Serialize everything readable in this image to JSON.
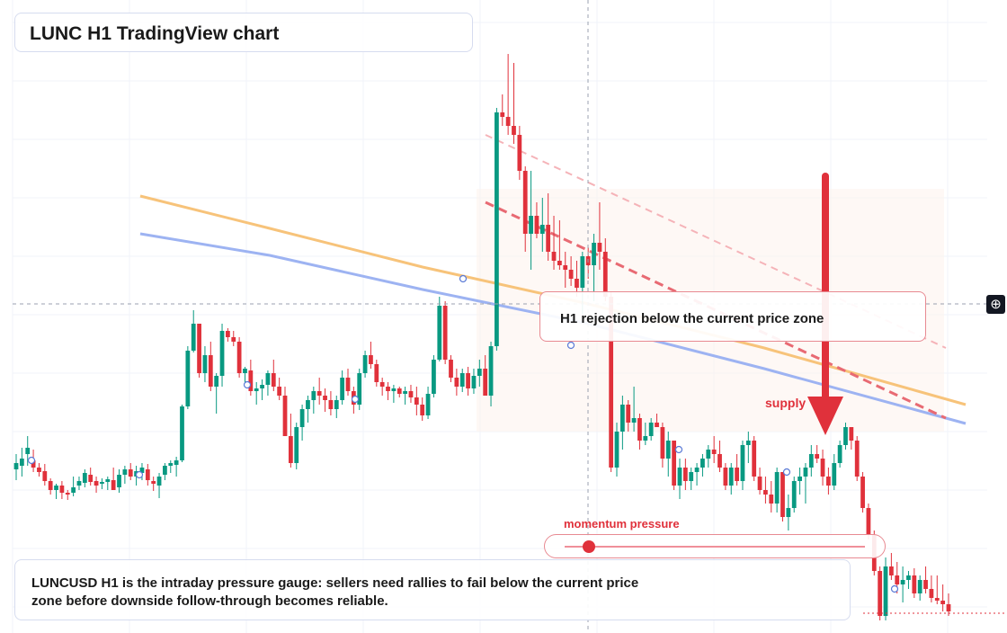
{
  "title": "LUNC H1 TradingView chart",
  "annotations": {
    "rejection": "H1 rejection below the current price zone",
    "supply": "supply",
    "momentum": "momentum pressure",
    "caption": "LUNCUSD H1 is the intraday pressure gauge: sellers need rallies to fail below the current price zone before downside follow-through becomes reliable."
  },
  "momentum_level": 0.08,
  "crosshair_icon": "crosshair-plus-icon",
  "colors": {
    "up": "#089981",
    "down": "#e0313b",
    "orange_line": "#f7c37a",
    "blue_line": "#9db3f2",
    "arrow": "#e0313b"
  },
  "chart_data": {
    "type": "candlestick",
    "title": "LUNC H1 TradingView chart",
    "ylim": [
      0,
      704
    ],
    "candles": [
      [
        522,
        505,
        534,
        515
      ],
      [
        518,
        498,
        530,
        510
      ],
      [
        505,
        485,
        518,
        498
      ],
      [
        512,
        500,
        525,
        520
      ],
      [
        520,
        515,
        530,
        525
      ],
      [
        524,
        516,
        540,
        535
      ],
      [
        535,
        532,
        550,
        545
      ],
      [
        545,
        538,
        555,
        540
      ],
      [
        540,
        535,
        555,
        548
      ],
      [
        548,
        545,
        556,
        550
      ],
      [
        548,
        530,
        552,
        542
      ],
      [
        540,
        530,
        545,
        535
      ],
      [
        537,
        522,
        542,
        526
      ],
      [
        528,
        520,
        540,
        536
      ],
      [
        535,
        530,
        548,
        540
      ],
      [
        538,
        532,
        544,
        536
      ],
      [
        536,
        530,
        545,
        533
      ],
      [
        534,
        520,
        545,
        545
      ],
      [
        542,
        522,
        548,
        528
      ],
      [
        528,
        518,
        538,
        522
      ],
      [
        522,
        515,
        534,
        530
      ],
      [
        530,
        518,
        540,
        524
      ],
      [
        526,
        515,
        534,
        520
      ],
      [
        522,
        516,
        540,
        534
      ],
      [
        535,
        530,
        546,
        538
      ],
      [
        540,
        526,
        554,
        530
      ],
      [
        528,
        515,
        534,
        518
      ],
      [
        518,
        512,
        526,
        515
      ],
      [
        517,
        508,
        530,
        512
      ],
      [
        512,
        450,
        514,
        452
      ],
      [
        452,
        385,
        455,
        390
      ],
      [
        390,
        345,
        392,
        360
      ],
      [
        360,
        365,
        420,
        415
      ],
      [
        415,
        385,
        425,
        395
      ],
      [
        395,
        380,
        435,
        430
      ],
      [
        430,
        415,
        460,
        418
      ],
      [
        418,
        360,
        430,
        368
      ],
      [
        368,
        365,
        380,
        375
      ],
      [
        375,
        368,
        385,
        380
      ],
      [
        380,
        375,
        420,
        415
      ],
      [
        415,
        408,
        430,
        410
      ],
      [
        412,
        400,
        440,
        435
      ],
      [
        435,
        425,
        450,
        432
      ],
      [
        432,
        422,
        445,
        428
      ],
      [
        428,
        412,
        440,
        415
      ],
      [
        415,
        400,
        435,
        430
      ],
      [
        430,
        420,
        445,
        440
      ],
      [
        440,
        430,
        480,
        485
      ],
      [
        485,
        460,
        520,
        515
      ],
      [
        515,
        470,
        522,
        475
      ],
      [
        475,
        450,
        490,
        455
      ],
      [
        455,
        440,
        470,
        445
      ],
      [
        445,
        430,
        460,
        435
      ],
      [
        435,
        420,
        450,
        440
      ],
      [
        440,
        432,
        458,
        445
      ],
      [
        445,
        435,
        462,
        455
      ],
      [
        455,
        440,
        465,
        445
      ],
      [
        445,
        412,
        450,
        420
      ],
      [
        420,
        410,
        440,
        435
      ],
      [
        435,
        430,
        460,
        450
      ],
      [
        450,
        410,
        456,
        415
      ],
      [
        415,
        390,
        420,
        395
      ],
      [
        395,
        380,
        410,
        405
      ],
      [
        405,
        400,
        430,
        425
      ],
      [
        425,
        420,
        440,
        430
      ],
      [
        430,
        425,
        445,
        435
      ],
      [
        435,
        428,
        448,
        432
      ],
      [
        432,
        430,
        442,
        438
      ],
      [
        438,
        430,
        450,
        435
      ],
      [
        435,
        428,
        448,
        442
      ],
      [
        442,
        430,
        462,
        450
      ],
      [
        450,
        442,
        468,
        462
      ],
      [
        462,
        430,
        466,
        438
      ],
      [
        438,
        395,
        442,
        400
      ],
      [
        400,
        330,
        402,
        340
      ],
      [
        340,
        335,
        405,
        400
      ],
      [
        400,
        395,
        425,
        420
      ],
      [
        420,
        410,
        440,
        430
      ],
      [
        430,
        410,
        436,
        415
      ],
      [
        415,
        408,
        440,
        432
      ],
      [
        432,
        410,
        438,
        418
      ],
      [
        418,
        400,
        430,
        410
      ],
      [
        410,
        395,
        420,
        440
      ],
      [
        440,
        380,
        452,
        385
      ],
      [
        385,
        120,
        390,
        125
      ],
      [
        125,
        105,
        140,
        130
      ],
      [
        130,
        60,
        150,
        140
      ],
      [
        140,
        70,
        160,
        150
      ],
      [
        150,
        140,
        200,
        190
      ],
      [
        190,
        185,
        280,
        260
      ],
      [
        260,
        190,
        300,
        240
      ],
      [
        240,
        225,
        265,
        260
      ],
      [
        260,
        220,
        280,
        250
      ],
      [
        250,
        215,
        290,
        280
      ],
      [
        280,
        240,
        300,
        290
      ],
      [
        290,
        245,
        300,
        295
      ],
      [
        295,
        280,
        320,
        300
      ],
      [
        300,
        285,
        318,
        310
      ],
      [
        310,
        290,
        330,
        320
      ],
      [
        320,
        280,
        350,
        285
      ],
      [
        285,
        275,
        310,
        295
      ],
      [
        295,
        260,
        335,
        270
      ],
      [
        270,
        225,
        300,
        280
      ],
      [
        280,
        265,
        335,
        330
      ],
      [
        330,
        325,
        525,
        520
      ],
      [
        520,
        470,
        530,
        480
      ],
      [
        480,
        440,
        500,
        450
      ],
      [
        450,
        445,
        480,
        470
      ],
      [
        470,
        430,
        480,
        465
      ],
      [
        465,
        460,
        500,
        490
      ],
      [
        490,
        470,
        495,
        485
      ],
      [
        485,
        465,
        490,
        470
      ],
      [
        470,
        460,
        475,
        475
      ],
      [
        475,
        470,
        520,
        510
      ],
      [
        510,
        480,
        530,
        490
      ],
      [
        490,
        490,
        545,
        540
      ],
      [
        540,
        510,
        555,
        520
      ],
      [
        520,
        510,
        545,
        535
      ],
      [
        535,
        520,
        545,
        525
      ],
      [
        525,
        515,
        540,
        520
      ],
      [
        520,
        505,
        530,
        510
      ],
      [
        510,
        495,
        520,
        500
      ],
      [
        500,
        485,
        515,
        505
      ],
      [
        505,
        490,
        525,
        520
      ],
      [
        520,
        515,
        545,
        540
      ],
      [
        540,
        515,
        550,
        520
      ],
      [
        520,
        505,
        540,
        535
      ],
      [
        535,
        490,
        545,
        495
      ],
      [
        495,
        480,
        515,
        490
      ],
      [
        490,
        485,
        535,
        530
      ],
      [
        530,
        520,
        550,
        545
      ],
      [
        545,
        530,
        560,
        550
      ],
      [
        550,
        535,
        570,
        560
      ],
      [
        560,
        520,
        570,
        525
      ],
      [
        525,
        530,
        580,
        575
      ],
      [
        575,
        550,
        590,
        565
      ],
      [
        565,
        530,
        570,
        535
      ],
      [
        535,
        520,
        550,
        530
      ],
      [
        530,
        515,
        560,
        520
      ],
      [
        520,
        495,
        530,
        505
      ],
      [
        505,
        495,
        515,
        510
      ],
      [
        510,
        500,
        540,
        530
      ],
      [
        530,
        520,
        550,
        540
      ],
      [
        540,
        505,
        545,
        515
      ],
      [
        515,
        490,
        520,
        495
      ],
      [
        495,
        470,
        500,
        475
      ],
      [
        475,
        480,
        500,
        490
      ],
      [
        490,
        485,
        535,
        530
      ],
      [
        530,
        525,
        570,
        565
      ],
      [
        565,
        560,
        600,
        595
      ],
      [
        595,
        590,
        640,
        635
      ],
      [
        635,
        630,
        690,
        685
      ],
      [
        685,
        620,
        690,
        630
      ],
      [
        630,
        615,
        645,
        640
      ],
      [
        640,
        625,
        660,
        650
      ],
      [
        650,
        630,
        670,
        645
      ],
      [
        645,
        635,
        655,
        640
      ],
      [
        640,
        632,
        665,
        660
      ],
      [
        660,
        640,
        668,
        645
      ],
      [
        645,
        630,
        660,
        655
      ],
      [
        655,
        640,
        670,
        665
      ],
      [
        665,
        640,
        672,
        668
      ],
      [
        668,
        650,
        680,
        672
      ],
      [
        672,
        660,
        685,
        680
      ]
    ],
    "series": [
      {
        "type": "ma",
        "points": [
          [
            156,
            218
          ],
          [
            300,
            254
          ],
          [
            470,
            297
          ],
          [
            650,
            337
          ],
          [
            850,
            387
          ],
          [
            1074,
            450
          ]
        ]
      },
      {
        "type": "ma",
        "points": [
          [
            156,
            260
          ],
          [
            300,
            284
          ],
          [
            470,
            322
          ],
          [
            650,
            359
          ],
          [
            850,
            410
          ],
          [
            1074,
            471
          ]
        ]
      },
      {
        "type": "trend",
        "style": "dashed",
        "points": [
          [
            540,
            150
          ],
          [
            1052,
            387
          ]
        ]
      },
      {
        "type": "trend",
        "style": "dashed",
        "points": [
          [
            540,
            225
          ],
          [
            1052,
            465
          ]
        ]
      }
    ],
    "crosshair": {
      "x": 654,
      "y": 338
    }
  }
}
